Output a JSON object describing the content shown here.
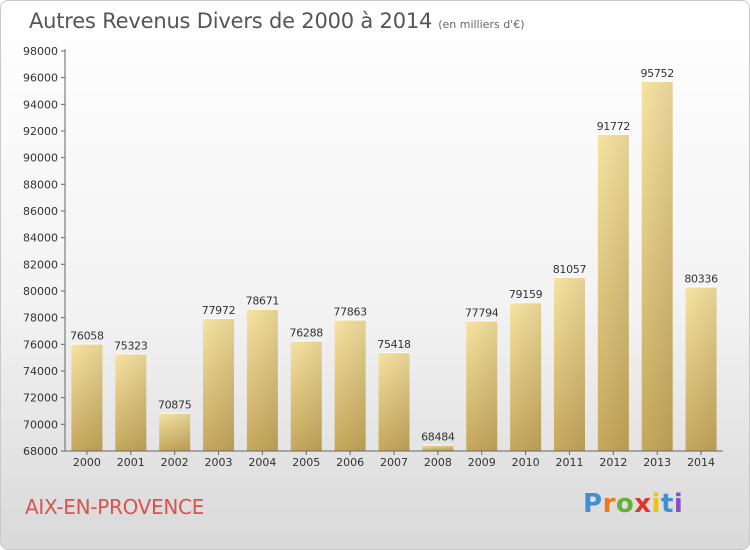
{
  "header": {
    "title": "Autres Revenus Divers de 2000 à 2014",
    "subtitle": "(en milliers d'€)"
  },
  "footer": {
    "city": "AIX-EN-PROVENCE",
    "logo_text": "Proxiti"
  },
  "colors": {
    "bar_light": "#f7e3a1",
    "bar_dark": "#c6a85c",
    "city": "#d9534f",
    "axis": "#555555"
  },
  "chart_data": {
    "type": "bar",
    "title": "Autres Revenus Divers de 2000 à 2014",
    "xlabel": "",
    "ylabel": "",
    "ylim": [
      68000,
      98000
    ],
    "ytick_step": 2000,
    "grid": false,
    "categories": [
      "2000",
      "2001",
      "2002",
      "2003",
      "2004",
      "2005",
      "2006",
      "2007",
      "2008",
      "2009",
      "2010",
      "2011",
      "2012",
      "2013",
      "2014"
    ],
    "values": [
      76058,
      75323,
      70875,
      77972,
      78671,
      76288,
      77863,
      75418,
      68484,
      77794,
      79159,
      81057,
      91772,
      95752,
      80336
    ]
  }
}
